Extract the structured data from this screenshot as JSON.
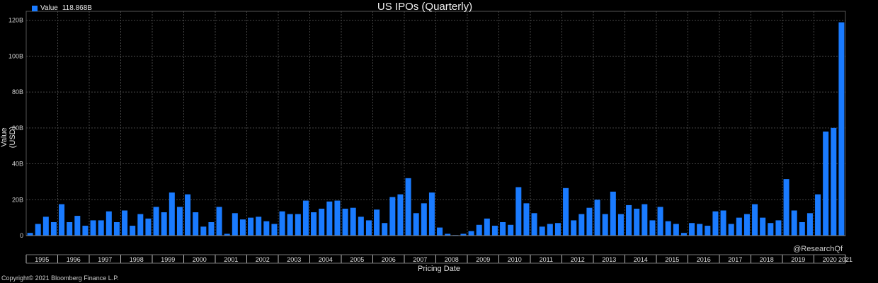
{
  "colors": {
    "background": "#000000",
    "bar": "#1a7bff",
    "grid": "#444444",
    "axis": "#bbbbbb"
  },
  "legend": {
    "label": "Value",
    "value": "118.868B"
  },
  "watermark": "@ResearchQf",
  "copyright": "Copyright© 2021 Bloomberg Finance L.P.",
  "chart_data": {
    "type": "bar",
    "title": "US IPOs (Quarterly)",
    "xlabel": "Pricing Date",
    "ylabel": "Value (USD)",
    "ylim": [
      0,
      125
    ],
    "yticks": [
      0,
      20,
      40,
      60,
      80,
      100,
      120
    ],
    "ytick_labels": [
      "0",
      "20B",
      "40B",
      "60B",
      "80B",
      "100B",
      "120B"
    ],
    "grid": true,
    "legend_position": "top-left",
    "year_labels": [
      "1995",
      "1996",
      "1997",
      "1998",
      "1999",
      "2000",
      "2001",
      "2002",
      "2003",
      "2004",
      "2005",
      "2006",
      "2007",
      "2008",
      "2009",
      "2010",
      "2011",
      "2012",
      "2013",
      "2014",
      "2015",
      "2016",
      "2017",
      "2018",
      "2019",
      "2020",
      "2021"
    ],
    "series": [
      {
        "name": "Value",
        "values": [
          1.5,
          6.5,
          10.5,
          7.5,
          17.5,
          7.5,
          11.0,
          5.5,
          8.5,
          8.5,
          13.5,
          7.5,
          14.0,
          5.5,
          12.0,
          9.5,
          16.0,
          13.0,
          24.0,
          16.0,
          23.0,
          13.0,
          5.0,
          7.5,
          16.0,
          1.0,
          12.5,
          9.0,
          10.0,
          10.5,
          8.0,
          6.5,
          13.5,
          12.0,
          12.0,
          19.5,
          13.0,
          15.0,
          19.0,
          19.5,
          15.0,
          15.5,
          10.5,
          8.5,
          14.5,
          7.0,
          21.5,
          23.0,
          32.0,
          12.5,
          18.0,
          24.0,
          4.5,
          1.0,
          0.3,
          1.0,
          2.5,
          6.0,
          9.5,
          5.5,
          7.5,
          6.0,
          27.0,
          18.0,
          12.5,
          5.0,
          6.5,
          7.0,
          26.5,
          8.5,
          12.0,
          15.5,
          20.0,
          12.0,
          24.5,
          12.0,
          17.0,
          15.0,
          17.5,
          8.5,
          16.0,
          8.0,
          6.5,
          1.5,
          7.0,
          6.5,
          5.5,
          13.5,
          14.0,
          6.5,
          10.0,
          12.0,
          17.5,
          10.0,
          7.0,
          8.5,
          31.5,
          14.0,
          7.5,
          12.5,
          23.0,
          58.0,
          60.0,
          118.868
        ]
      }
    ]
  }
}
